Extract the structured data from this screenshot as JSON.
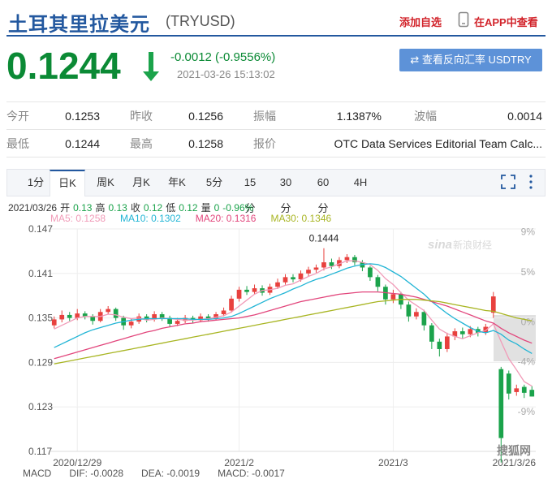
{
  "header": {
    "title": "土耳其里拉美元",
    "code": "(TRYUSD)",
    "add_watch": "添加自选",
    "app_view": "在APP中查看"
  },
  "quote": {
    "price": "0.1244",
    "change": "-0.0012 (-0.9556%)",
    "time": "2021-03-26 15:13:02",
    "reverse_button": "查看反向汇率 USDTRY"
  },
  "stats": {
    "rows": [
      [
        "今开",
        "0.1253",
        "昨收",
        "0.1256",
        "振幅",
        "1.1387%",
        "波幅",
        "0.0014"
      ],
      [
        "最低",
        "0.1244",
        "最高",
        "0.1258",
        "报价",
        "OTC Data Services Editorial Team Calc..."
      ]
    ]
  },
  "tabs": {
    "items": [
      "1分",
      "日K",
      "周K",
      "月K",
      "年K",
      "5分",
      "15分",
      "30分",
      "60分",
      "4H"
    ],
    "active": 1
  },
  "info": {
    "date": "2021/03/26",
    "items": [
      [
        "开",
        "0.13"
      ],
      [
        "高",
        "0.13"
      ],
      [
        "收",
        "0.12"
      ],
      [
        "低",
        "0.12"
      ],
      [
        "量",
        "0"
      ]
    ],
    "change": "-0.96%"
  },
  "macd": [
    "MACD",
    "DIF: -0.0028",
    "DEA: -0.0019",
    "MACD: -0.0017"
  ],
  "watermark": {
    "logo": "sina",
    "text": "新浪财经",
    "source": "搜狐网"
  },
  "chart_data": {
    "type": "candlestick",
    "categories": [
      null,
      null,
      null,
      "2020/12/29",
      null,
      null,
      null,
      null,
      null,
      null,
      null,
      null,
      null,
      null,
      null,
      null,
      null,
      null,
      null,
      null,
      null,
      null,
      null,
      null,
      "2021/2",
      null,
      null,
      null,
      null,
      null,
      null,
      null,
      null,
      null,
      null,
      null,
      null,
      null,
      null,
      null,
      null,
      null,
      null,
      null,
      "2021/3",
      null,
      null,
      null,
      null,
      null,
      null,
      null,
      null,
      null,
      null,
      null,
      null,
      null,
      null,
      null,
      null,
      null,
      "2021/3/26"
    ],
    "open": [
      0.134,
      0.1348,
      0.1354,
      0.135,
      0.1356,
      0.1352,
      0.1346,
      0.1358,
      0.1362,
      0.135,
      0.134,
      0.1345,
      0.1352,
      0.1348,
      0.1355,
      0.135,
      0.1342,
      0.1346,
      0.135,
      0.1347,
      0.1352,
      0.1349,
      0.1355,
      0.136,
      0.1376,
      0.1388,
      0.1385,
      0.139,
      0.1384,
      0.1392,
      0.1398,
      0.1405,
      0.1402,
      0.141,
      0.1415,
      0.1418,
      0.1425,
      0.142,
      0.1428,
      0.1432,
      0.1425,
      0.1418,
      0.1405,
      0.1392,
      0.1375,
      0.1382,
      0.1368,
      0.1352,
      0.1358,
      0.134,
      0.1318,
      0.1308,
      0.1325,
      0.1332,
      0.1328,
      0.1335,
      0.133,
      0.1357,
      0.1281,
      0.1275,
      0.125,
      0.1257,
      0.1253
    ],
    "high": [
      0.1352,
      0.136,
      0.1358,
      0.1362,
      0.1359,
      0.1355,
      0.1362,
      0.1366,
      0.1364,
      0.1353,
      0.1349,
      0.1356,
      0.1355,
      0.1359,
      0.1358,
      0.1353,
      0.135,
      0.1354,
      0.1353,
      0.1356,
      0.1355,
      0.1358,
      0.1364,
      0.138,
      0.1392,
      0.1393,
      0.1395,
      0.1394,
      0.1396,
      0.1403,
      0.1409,
      0.1409,
      0.1414,
      0.1419,
      0.1422,
      0.1444,
      0.143,
      0.1432,
      0.1436,
      0.1435,
      0.1428,
      0.142,
      0.1408,
      0.1395,
      0.1388,
      0.1385,
      0.1372,
      0.1363,
      0.1361,
      0.1343,
      0.1322,
      0.133,
      0.1336,
      0.1337,
      0.1339,
      0.1338,
      0.1342,
      0.1385,
      0.1284,
      0.1279,
      0.126,
      0.126,
      0.1258
    ],
    "low": [
      0.1336,
      0.1344,
      0.1346,
      0.1347,
      0.1348,
      0.1341,
      0.1344,
      0.1355,
      0.1346,
      0.1334,
      0.1336,
      0.1342,
      0.1344,
      0.1345,
      0.1346,
      0.1338,
      0.1339,
      0.1343,
      0.1343,
      0.1344,
      0.1345,
      0.1347,
      0.1352,
      0.1357,
      0.1372,
      0.1381,
      0.1382,
      0.138,
      0.1381,
      0.1389,
      0.1395,
      0.1398,
      0.1399,
      0.1406,
      0.1411,
      0.1414,
      0.1416,
      0.1417,
      0.1424,
      0.1421,
      0.1413,
      0.14,
      0.1386,
      0.1368,
      0.137,
      0.1362,
      0.1345,
      0.1348,
      0.1333,
      0.1308,
      0.1298,
      0.1304,
      0.132,
      0.1322,
      0.1324,
      0.1325,
      0.1327,
      0.135,
      0.1155,
      0.124,
      0.1245,
      0.1242,
      0.1244
    ],
    "close": [
      0.1348,
      0.1354,
      0.135,
      0.1356,
      0.1352,
      0.1346,
      0.1358,
      0.1362,
      0.135,
      0.134,
      0.1345,
      0.1352,
      0.1348,
      0.1355,
      0.135,
      0.1342,
      0.1346,
      0.135,
      0.1347,
      0.1352,
      0.1349,
      0.1355,
      0.136,
      0.1376,
      0.1388,
      0.1385,
      0.139,
      0.1384,
      0.1392,
      0.1398,
      0.1405,
      0.1402,
      0.141,
      0.1415,
      0.1418,
      0.1425,
      0.142,
      0.1428,
      0.1432,
      0.1425,
      0.1418,
      0.1405,
      0.1392,
      0.1375,
      0.1382,
      0.1368,
      0.1352,
      0.1358,
      0.134,
      0.1318,
      0.1308,
      0.1325,
      0.1332,
      0.1328,
      0.1335,
      0.133,
      0.1338,
      0.1379,
      0.1188,
      0.1248,
      0.1255,
      0.1249,
      0.1244
    ],
    "up_color": "#e8413e",
    "down_color": "#1ba34b",
    "series": [
      {
        "name": "MA5: 0.1258",
        "color": "#f19bb8",
        "values": [
          0.1335,
          0.134,
          0.1345,
          0.135,
          0.1352,
          0.1352,
          0.1352,
          0.1355,
          0.1354,
          0.1351,
          0.1349,
          0.135,
          0.1347,
          0.1348,
          0.135,
          0.1349,
          0.1348,
          0.1347,
          0.1347,
          0.1348,
          0.1349,
          0.1351,
          0.1353,
          0.1358,
          0.1366,
          0.1374,
          0.1382,
          0.1387,
          0.1388,
          0.139,
          0.1394,
          0.1396,
          0.1401,
          0.1406,
          0.141,
          0.1416,
          0.1419,
          0.1423,
          0.1427,
          0.1427,
          0.1425,
          0.1422,
          0.1414,
          0.1403,
          0.1395,
          0.1384,
          0.1374,
          0.1367,
          0.136,
          0.1347,
          0.1335,
          0.1329,
          0.1325,
          0.1322,
          0.1326,
          0.133,
          0.1333,
          0.1342,
          0.1318,
          0.1295,
          0.128,
          0.1264,
          0.1258
        ]
      },
      {
        "name": "MA10: 0.1302",
        "color": "#22b5d5",
        "values": [
          0.131,
          0.1315,
          0.132,
          0.1325,
          0.133,
          0.1334,
          0.1337,
          0.134,
          0.1343,
          0.1345,
          0.1347,
          0.1348,
          0.1349,
          0.1349,
          0.1349,
          0.1349,
          0.1349,
          0.1349,
          0.1348,
          0.1348,
          0.1348,
          0.1349,
          0.135,
          0.1352,
          0.1356,
          0.1361,
          0.1366,
          0.1371,
          0.1376,
          0.138,
          0.1384,
          0.1389,
          0.1393,
          0.1398,
          0.1402,
          0.1405,
          0.1409,
          0.1413,
          0.1417,
          0.142,
          0.1422,
          0.1423,
          0.1422,
          0.1418,
          0.1412,
          0.1406,
          0.1398,
          0.139,
          0.1382,
          0.1372,
          0.1364,
          0.1356,
          0.1349,
          0.1343,
          0.1337,
          0.1332,
          0.133,
          0.1333,
          0.1328,
          0.132,
          0.1315,
          0.1308,
          0.1302
        ]
      },
      {
        "name": "MA20: 0.1316",
        "color": "#e2467c",
        "values": [
          0.1295,
          0.1298,
          0.1301,
          0.1304,
          0.1307,
          0.131,
          0.1313,
          0.1316,
          0.1319,
          0.1322,
          0.1325,
          0.1328,
          0.1331,
          0.1333,
          0.1336,
          0.1338,
          0.134,
          0.1342,
          0.1343,
          0.1345,
          0.1346,
          0.1347,
          0.1348,
          0.1349,
          0.135,
          0.1352,
          0.1354,
          0.1357,
          0.136,
          0.1363,
          0.1366,
          0.1369,
          0.1372,
          0.1374,
          0.1376,
          0.1378,
          0.138,
          0.1382,
          0.1383,
          0.1384,
          0.1385,
          0.1385,
          0.1385,
          0.1384,
          0.1383,
          0.1382,
          0.138,
          0.1378,
          0.1375,
          0.1372,
          0.1369,
          0.1366,
          0.1362,
          0.1358,
          0.1354,
          0.135,
          0.1346,
          0.1343,
          0.1336,
          0.133,
          0.1325,
          0.132,
          0.1316
        ]
      },
      {
        "name": "MA30: 0.1346",
        "color": "#a8b522",
        "values": [
          0.1288,
          0.129,
          0.1292,
          0.1294,
          0.1296,
          0.1298,
          0.13,
          0.1302,
          0.1304,
          0.1306,
          0.1308,
          0.131,
          0.1312,
          0.1314,
          0.1316,
          0.1318,
          0.132,
          0.1322,
          0.1324,
          0.1326,
          0.1328,
          0.133,
          0.1332,
          0.1334,
          0.1336,
          0.1338,
          0.134,
          0.1342,
          0.1344,
          0.1346,
          0.1348,
          0.135,
          0.1352,
          0.1354,
          0.1356,
          0.1358,
          0.136,
          0.1362,
          0.1364,
          0.1366,
          0.1368,
          0.137,
          0.1372,
          0.1373,
          0.1374,
          0.1375,
          0.1375,
          0.1375,
          0.1374,
          0.1373,
          0.1372,
          0.137,
          0.1368,
          0.1366,
          0.1364,
          0.1362,
          0.136,
          0.1359,
          0.1356,
          0.1353,
          0.135,
          0.1348,
          0.1346
        ]
      }
    ],
    "ylim": [
      0.117,
      0.147
    ],
    "yticks": [
      0.117,
      0.123,
      0.129,
      0.135,
      0.141,
      0.147
    ],
    "y2lim": [
      -13,
      9.3
    ],
    "y2ticks": [
      {
        "value": 9,
        "label": "9%"
      },
      {
        "value": 5,
        "label": "5%"
      },
      {
        "value": 0,
        "label": "0%"
      },
      {
        "value": -4,
        "label": "-4%"
      },
      {
        "value": -9,
        "label": "-9%"
      }
    ],
    "peak_index": 35,
    "grid": true
  }
}
